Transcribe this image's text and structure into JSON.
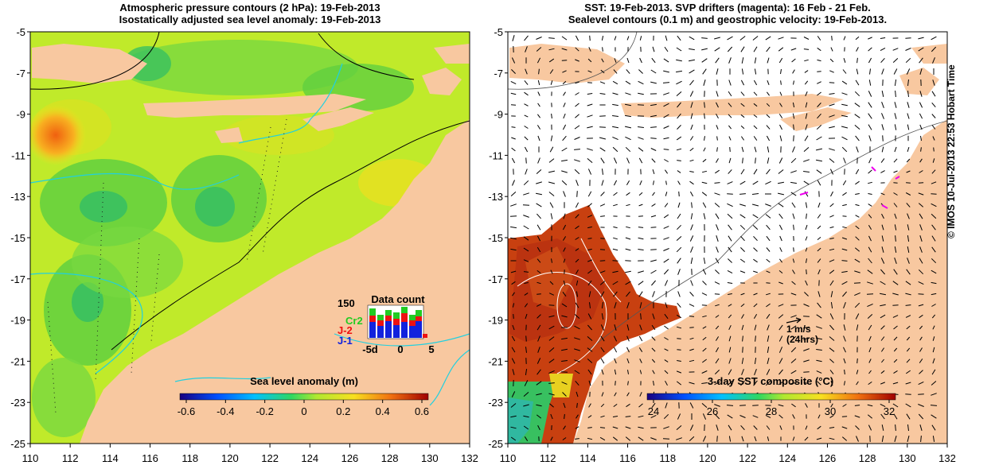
{
  "left_panel": {
    "title_line1": "Atmospheric pressure contours (2 hPa): 19-Feb-2013",
    "title_line2": "Isostatically adjusted sea level anomaly: 19-Feb-2013",
    "colorbar_title": "Sea level anomaly (m)",
    "colorbar_ticks": [
      "-0.6",
      "-0.4",
      "-0.2",
      "0",
      "0.2",
      "0.4",
      "0.6"
    ],
    "inset": {
      "title": "Data count",
      "ymax_label": "150",
      "series_labels": [
        {
          "name": "Cr2",
          "color": "#22cc22"
        },
        {
          "name": "J-2",
          "color": "#ee1111"
        },
        {
          "name": "J-1",
          "color": "#1122dd"
        }
      ],
      "x_ticks": [
        "-5d",
        "0",
        "5"
      ]
    }
  },
  "right_panel": {
    "title_line1": "SST: 19-Feb-2013. SVP drifters (magenta): 16 Feb - 21 Feb.",
    "title_line2": "Sealevel contours (0.1 m) and geostrophic velocity: 19-Feb-2013.",
    "colorbar_title": "3-day SST composite (°C)",
    "colorbar_ticks": [
      "24",
      "26",
      "28",
      "30",
      "32"
    ],
    "scale_label_line1": "1 m/s",
    "scale_label_line2": "(24hrs)"
  },
  "axes": {
    "x_ticks": [
      "110",
      "112",
      "114",
      "116",
      "118",
      "120",
      "122",
      "124",
      "126",
      "128",
      "130",
      "132"
    ],
    "y_ticks": [
      "-5",
      "-7",
      "-9",
      "-11",
      "-13",
      "-15",
      "-17",
      "-19",
      "-21",
      "-23",
      "-25"
    ]
  },
  "side_label": "© IMOS 10-Jul-2013 22:53 Hobart Time",
  "colors": {
    "land": "#f8c8a0",
    "ocean_anomaly_base": "#c0ea2a",
    "sst_warm": "#c03010"
  }
}
